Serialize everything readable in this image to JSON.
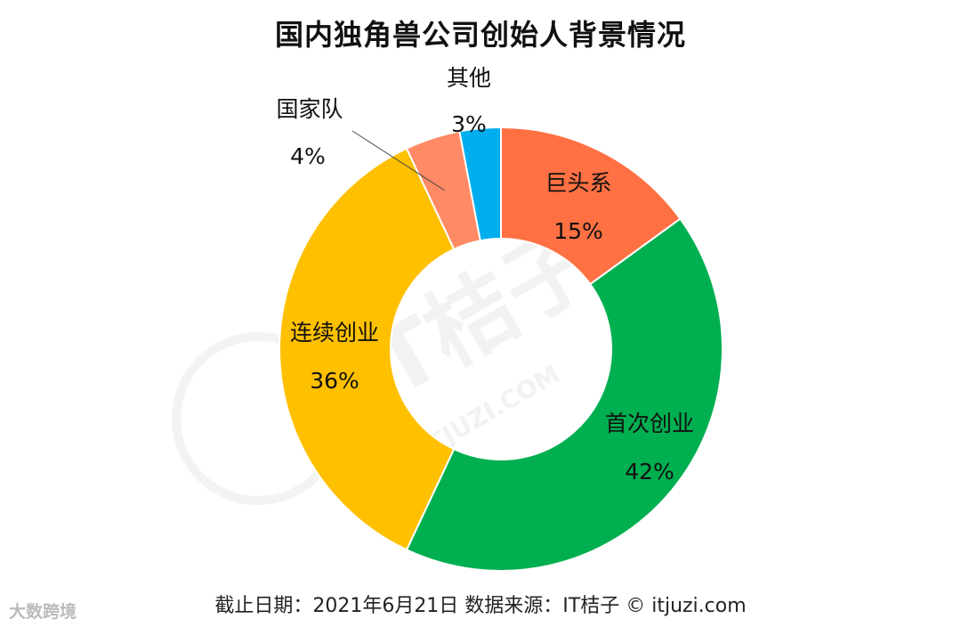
{
  "chart_data": {
    "type": "pie",
    "donut": true,
    "title": "国内独角兽公司创始人背景情况",
    "categories": [
      "巨头系",
      "首次创业",
      "连续创业",
      "国家队",
      "其他"
    ],
    "values": [
      15,
      42,
      36,
      4,
      3
    ],
    "value_labels": [
      "15%",
      "42%",
      "36%",
      "4%",
      "3%"
    ],
    "colors": [
      "#FF7043",
      "#00AF50",
      "#FFC000",
      "#FF8A65",
      "#00AEEF"
    ],
    "legend": "none"
  },
  "footer": {
    "source": "截止日期：2021年6月21日    数据来源：IT桔子 © itjuzi.com"
  },
  "watermark": {
    "brand": "IT桔子",
    "site": "ITJUZI.COM",
    "corner_logo": "大数跨境"
  }
}
